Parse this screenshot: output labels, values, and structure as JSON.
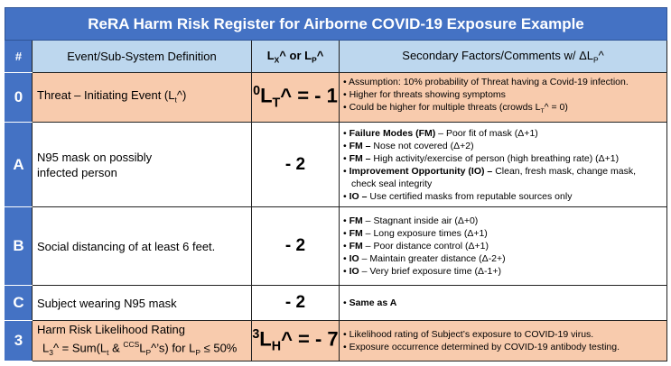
{
  "title": "ReRA Harm Risk Register for Airborne COVID-19 Exposure Example",
  "header": {
    "num": "#",
    "event": "Event/Sub-System Definition",
    "l_a": "L",
    "l_a_sub": "X",
    "l_b": "^ or L",
    "l_b_sub": "P",
    "l_c": "^",
    "comments": "Secondary Factors/Comments  w/ ΔL",
    "comments_sub": "P",
    "comments_end": "^"
  },
  "rows": [
    {
      "id": "0",
      "event": "Threat – Initiating Event (L",
      "event_sub": "t",
      "event_end": "^)",
      "l_sup": "0",
      "l_main": "L",
      "l_sub": "T",
      "l_end": "^ = - 1",
      "bullets": [
        {
          "b": "",
          "t": "Assumption: 10% probability of Threat having a Covid-19 infection."
        },
        {
          "b": "",
          "t": "Higher for threats showing symptoms"
        },
        {
          "b": "",
          "t": "Could be higher for multiple threats (crowds L",
          "sub": "T",
          "t2": "^ = 0)"
        }
      ]
    },
    {
      "id": "A",
      "event": "N95 mask on possibly infected person",
      "l": "- 2",
      "bullets": [
        {
          "b": "Failure Modes (FM)",
          "t": " – Poor fit of mask (Δ+1)"
        },
        {
          "b": "FM –",
          "t": " Nose not covered (Δ+2)"
        },
        {
          "b": "FM –",
          "t": " High activity/exercise of person (high breathing rate) (Δ+1)"
        },
        {
          "b": "Improvement Opportunity (IO)  –",
          "t": " Clean, fresh mask, change mask, check seal integrity"
        },
        {
          "b": "IO –",
          "t": " Use certified masks from reputable sources only"
        }
      ]
    },
    {
      "id": "B",
      "event": "Social distancing of at least 6 feet.",
      "l": "- 2",
      "bullets": [
        {
          "b": "FM",
          "t": " – Stagnant inside air (Δ+0)"
        },
        {
          "b": "FM",
          "t": " – Long exposure times (Δ+1)"
        },
        {
          "b": "FM",
          "t": " – Poor distance control (Δ+1)"
        },
        {
          "b": "IO",
          "t": " – Maintain greater distance (Δ-2+)"
        },
        {
          "b": "IO",
          "t": " – Very brief exposure time (Δ-1+)"
        }
      ]
    },
    {
      "id": "C",
      "event": "Subject wearing N95 mask",
      "l": "- 2",
      "bullets": [
        {
          "b": "Same as A",
          "t": ""
        }
      ]
    },
    {
      "id": "3",
      "event": "Harm Risk Likelihood Rating",
      "event2_a": "L",
      "event2_sub1": "3",
      "event2_b": "^ = Sum(L",
      "event2_sub2": "t",
      "event2_c": " & ",
      "event2_sup": "CCS",
      "event2_d": "L",
      "event2_sub3": "P",
      "event2_e": "^’s) for L",
      "event2_sub4": "P",
      "event2_f": " ≤ 50%",
      "l_sup": "3",
      "l_main": "L",
      "l_sub": "H",
      "l_end": "^ = - 7",
      "bullets": [
        {
          "b": "",
          "t": "Likelihood rating of Subject’s exposure to COVID-19 virus."
        },
        {
          "b": "",
          "t": "Exposure occurrence determined by COVID-19 antibody testing."
        }
      ]
    }
  ]
}
